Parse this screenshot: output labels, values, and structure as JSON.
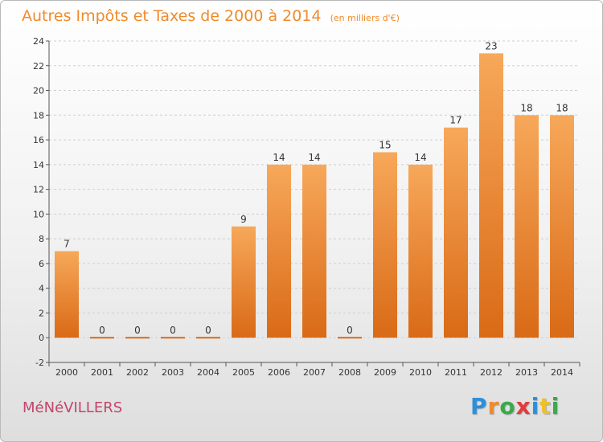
{
  "header": {
    "title": "Autres Impôts et Taxes de 2000 à 2014",
    "unit": "(en milliers d'€)"
  },
  "footer": {
    "city": "MéNéVILLERS",
    "brand_letters": [
      "P",
      "r",
      "o",
      "x",
      "i",
      "t",
      "i"
    ],
    "brand_colors": [
      "#2e8fd9",
      "#f08a2a",
      "#3aa94a",
      "#e23b3b",
      "#2e8fd9",
      "#f0c020",
      "#3aa94a"
    ]
  },
  "colors": {
    "bar_top": "#f7a85a",
    "bar_bottom": "#d96a16",
    "title": "#f08a2a",
    "city": "#c2456c",
    "axis": "#555555",
    "grid": "#cfcfcf"
  },
  "chart_data": {
    "type": "bar",
    "title": "Autres Impôts et Taxes de 2000 à 2014",
    "subtitle": "(en milliers d'€)",
    "xlabel": "",
    "ylabel": "",
    "categories": [
      "2000",
      "2001",
      "2002",
      "2003",
      "2004",
      "2005",
      "2006",
      "2007",
      "2008",
      "2009",
      "2010",
      "2011",
      "2012",
      "2013",
      "2014"
    ],
    "values": [
      7,
      0,
      0,
      0,
      0,
      9,
      14,
      14,
      0,
      15,
      14,
      17,
      23,
      18,
      18
    ],
    "data_labels": [
      "7",
      "0",
      "0",
      "0",
      "0",
      "9",
      "14",
      "14",
      "0",
      "15",
      "14",
      "17",
      "23",
      "18",
      "18"
    ],
    "ylim": [
      -2,
      24
    ],
    "yticks": [
      -2,
      0,
      2,
      4,
      6,
      8,
      10,
      12,
      14,
      16,
      18,
      20,
      22,
      24
    ],
    "grid": true
  }
}
